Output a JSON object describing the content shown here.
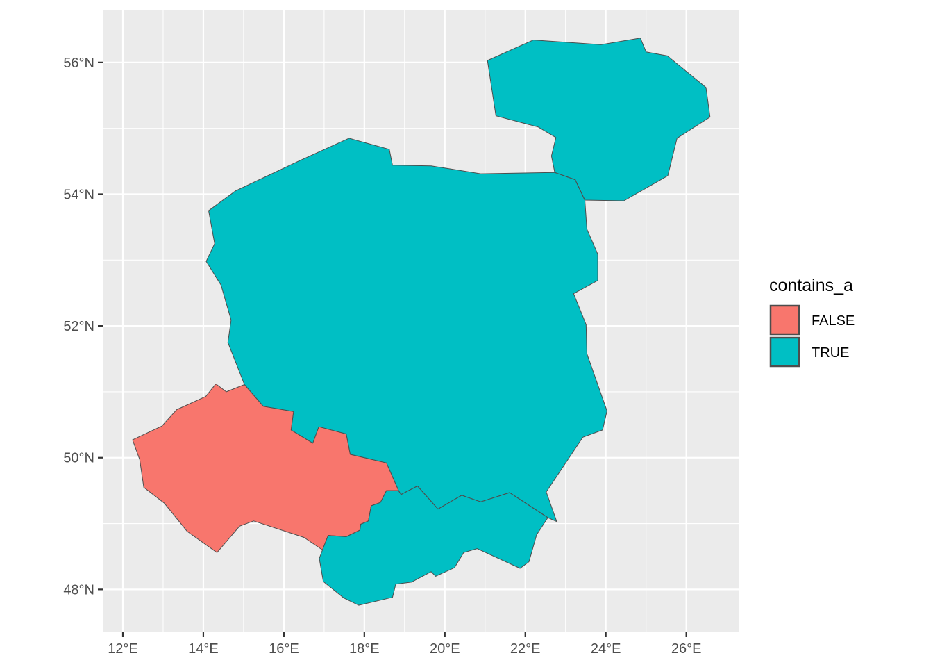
{
  "chart_data": {
    "type": "map",
    "xlabel": "",
    "ylabel": "",
    "xlim": [
      11.5,
      27.3
    ],
    "ylim": [
      47.35,
      56.8
    ],
    "x_ticks": [
      {
        "value": 12,
        "label": "12°E"
      },
      {
        "value": 14,
        "label": "14°E"
      },
      {
        "value": 16,
        "label": "16°E"
      },
      {
        "value": 18,
        "label": "18°E"
      },
      {
        "value": 20,
        "label": "20°E"
      },
      {
        "value": 22,
        "label": "22°E"
      },
      {
        "value": 24,
        "label": "24°E"
      },
      {
        "value": 26,
        "label": "26°E"
      }
    ],
    "y_ticks": [
      {
        "value": 48,
        "label": "48°N"
      },
      {
        "value": 50,
        "label": "50°N"
      },
      {
        "value": 52,
        "label": "52°N"
      },
      {
        "value": 54,
        "label": "54°N"
      },
      {
        "value": 56,
        "label": "56°N"
      }
    ],
    "legend": {
      "title": "contains_a",
      "position": "right",
      "entries": [
        {
          "label": "FALSE",
          "color": "#F8766D"
        },
        {
          "label": "TRUE",
          "color": "#00BFC4"
        }
      ]
    },
    "grid": true,
    "panel_background": "#EBEBEB",
    "border_color": "#4D4D4D",
    "regions": [
      {
        "fill": "TRUE",
        "coords": [
          [
            14.13,
            53.75
          ],
          [
            14.8,
            54.05
          ],
          [
            16.36,
            54.5
          ],
          [
            17.62,
            54.85
          ],
          [
            18.62,
            54.68
          ],
          [
            18.7,
            54.44
          ],
          [
            19.66,
            54.43
          ],
          [
            20.89,
            54.31
          ],
          [
            22.73,
            54.33
          ],
          [
            23.24,
            54.22
          ],
          [
            23.48,
            53.91
          ],
          [
            23.53,
            53.47
          ],
          [
            23.8,
            53.09
          ],
          [
            23.8,
            52.69
          ],
          [
            23.2,
            52.49
          ],
          [
            23.51,
            52.02
          ],
          [
            23.53,
            51.58
          ],
          [
            24.03,
            50.71
          ],
          [
            23.92,
            50.42
          ],
          [
            23.43,
            50.31
          ],
          [
            22.52,
            49.48
          ],
          [
            22.78,
            49.03
          ],
          [
            22.56,
            49.09
          ],
          [
            21.61,
            49.47
          ],
          [
            20.89,
            49.33
          ],
          [
            20.42,
            49.43
          ],
          [
            19.83,
            49.22
          ],
          [
            19.32,
            49.57
          ],
          [
            18.91,
            49.44
          ],
          [
            18.85,
            49.5
          ],
          [
            18.55,
            49.92
          ],
          [
            17.65,
            50.05
          ],
          [
            17.55,
            50.36
          ],
          [
            16.87,
            50.47
          ],
          [
            16.72,
            50.22
          ],
          [
            16.18,
            50.42
          ],
          [
            16.24,
            50.7
          ],
          [
            15.49,
            50.78
          ],
          [
            15.02,
            51.11
          ],
          [
            14.61,
            51.75
          ],
          [
            14.69,
            52.09
          ],
          [
            14.44,
            52.62
          ],
          [
            14.07,
            52.98
          ],
          [
            14.28,
            53.25
          ],
          [
            14.13,
            53.75
          ]
        ]
      },
      {
        "fill": "FALSE",
        "coords": [
          [
            15.02,
            51.11
          ],
          [
            15.49,
            50.78
          ],
          [
            16.24,
            50.7
          ],
          [
            16.18,
            50.42
          ],
          [
            16.72,
            50.22
          ],
          [
            16.87,
            50.47
          ],
          [
            17.55,
            50.36
          ],
          [
            17.65,
            50.05
          ],
          [
            18.55,
            49.92
          ],
          [
            18.85,
            49.5
          ],
          [
            18.55,
            49.5
          ],
          [
            18.4,
            49.32
          ],
          [
            18.17,
            49.27
          ],
          [
            18.1,
            49.04
          ],
          [
            17.91,
            48.99
          ],
          [
            17.89,
            48.9
          ],
          [
            17.55,
            48.8
          ],
          [
            17.1,
            48.82
          ],
          [
            16.96,
            48.6
          ],
          [
            16.5,
            48.79
          ],
          [
            15.25,
            49.04
          ],
          [
            14.9,
            48.96
          ],
          [
            14.34,
            48.56
          ],
          [
            13.6,
            48.88
          ],
          [
            13.03,
            49.31
          ],
          [
            12.52,
            49.55
          ],
          [
            12.42,
            49.97
          ],
          [
            12.24,
            50.27
          ],
          [
            12.97,
            50.48
          ],
          [
            13.34,
            50.73
          ],
          [
            14.06,
            50.93
          ],
          [
            14.31,
            51.12
          ],
          [
            14.57,
            51.0
          ],
          [
            15.02,
            51.11
          ]
        ]
      },
      {
        "fill": "TRUE",
        "coords": [
          [
            18.85,
            49.5
          ],
          [
            18.91,
            49.44
          ],
          [
            19.32,
            49.57
          ],
          [
            19.83,
            49.22
          ],
          [
            20.42,
            49.43
          ],
          [
            20.89,
            49.33
          ],
          [
            21.61,
            49.47
          ],
          [
            22.56,
            49.09
          ],
          [
            22.28,
            48.83
          ],
          [
            22.09,
            48.42
          ],
          [
            21.87,
            48.32
          ],
          [
            20.8,
            48.62
          ],
          [
            20.47,
            48.56
          ],
          [
            20.24,
            48.33
          ],
          [
            19.77,
            48.2
          ],
          [
            19.66,
            48.27
          ],
          [
            19.17,
            48.11
          ],
          [
            18.78,
            48.08
          ],
          [
            18.7,
            47.88
          ],
          [
            17.86,
            47.76
          ],
          [
            17.49,
            47.87
          ],
          [
            16.98,
            48.12
          ],
          [
            16.88,
            48.47
          ],
          [
            16.96,
            48.6
          ],
          [
            17.1,
            48.82
          ],
          [
            17.55,
            48.8
          ],
          [
            17.89,
            48.9
          ],
          [
            17.91,
            48.99
          ],
          [
            18.1,
            49.04
          ],
          [
            18.17,
            49.27
          ],
          [
            18.4,
            49.32
          ],
          [
            18.55,
            49.5
          ],
          [
            18.85,
            49.5
          ]
        ]
      },
      {
        "fill": "TRUE",
        "coords": [
          [
            21.06,
            56.03
          ],
          [
            22.2,
            56.34
          ],
          [
            23.88,
            56.27
          ],
          [
            24.86,
            56.37
          ],
          [
            25.0,
            56.16
          ],
          [
            25.53,
            56.1
          ],
          [
            26.49,
            55.62
          ],
          [
            26.59,
            55.17
          ],
          [
            25.77,
            54.85
          ],
          [
            25.54,
            54.28
          ],
          [
            24.45,
            53.9
          ],
          [
            23.48,
            53.91
          ],
          [
            23.24,
            54.22
          ],
          [
            22.73,
            54.33
          ],
          [
            22.65,
            54.58
          ],
          [
            22.76,
            54.86
          ],
          [
            22.32,
            55.02
          ],
          [
            21.27,
            55.19
          ],
          [
            21.06,
            56.03
          ]
        ]
      }
    ]
  }
}
